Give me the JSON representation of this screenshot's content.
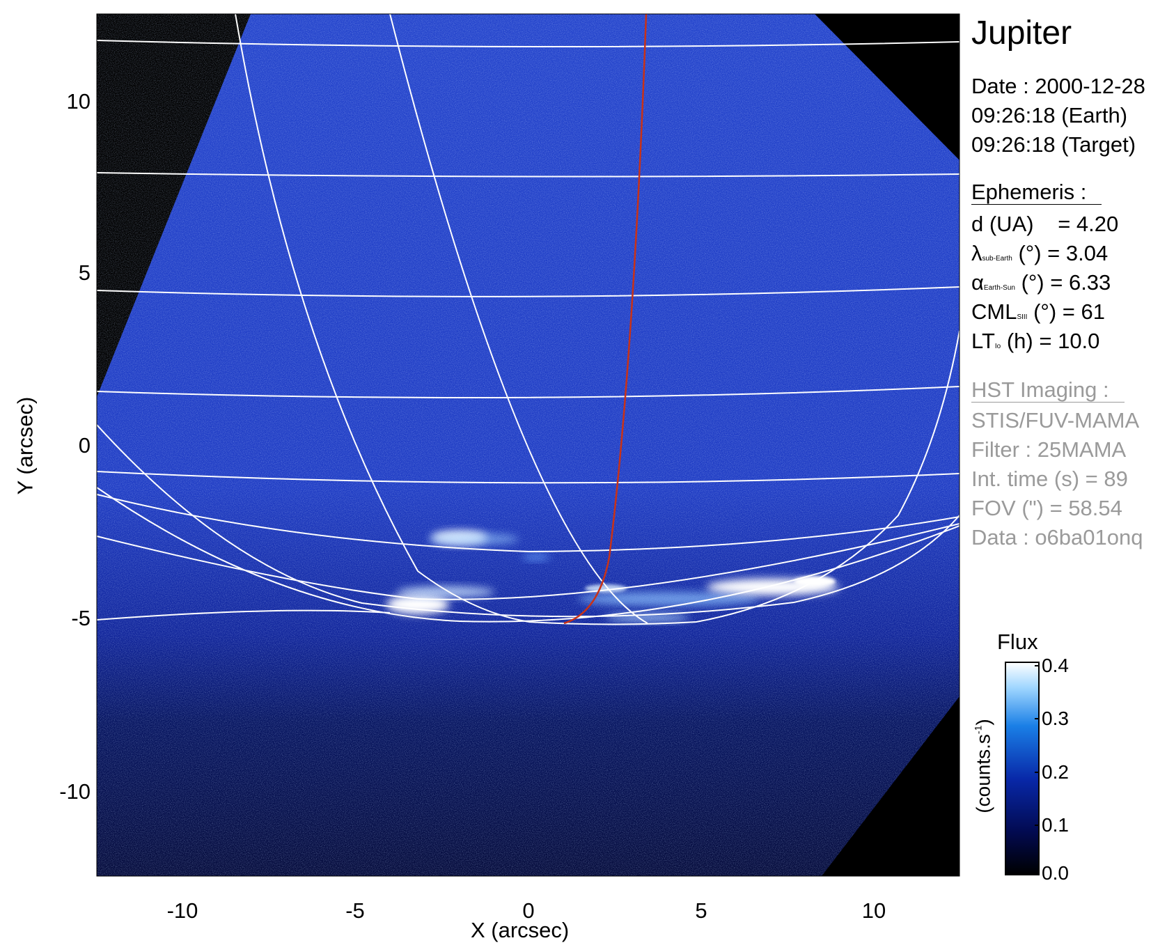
{
  "panel": {
    "title": "Jupiter",
    "date_line": "Date : 2000-12-28",
    "time_earth": "09:26:18 (Earth)",
    "time_target": "09:26:18 (Target)",
    "ephemeris_header": "Ephemeris :",
    "eph": {
      "d_label": "d (UA)",
      "d_value": "= 4.20",
      "lambda_sym": "λ",
      "lambda_sub": "sub-Earth",
      "lambda_value": "(°) = 3.04",
      "alpha_sym": "α",
      "alpha_sub": "Earth-Sun",
      "alpha_value": "(°) = 6.33",
      "cml_sym": "CML",
      "cml_sub": "SIII",
      "cml_value": "(°) = 61",
      "lt_sym": "LT",
      "lt_sub": "Io",
      "lt_value": "(h) = 10.0"
    },
    "hst_header": "HST Imaging :",
    "instrument": "STIS/FUV-MAMA",
    "filter": "Filter : 25MAMA",
    "int_time": "Int. time (s) = 89",
    "fov": "FOV (\") = 58.54",
    "data_id": "Data : o6ba01onq"
  },
  "axes": {
    "xlabel": "X (arcsec)",
    "ylabel": "Y (arcsec)",
    "xticks": [
      "-10",
      "-5",
      "0",
      "5",
      "10"
    ],
    "yticks": [
      "10",
      "5",
      "0",
      "-5",
      "-10"
    ],
    "x_range": [
      -12.5,
      12.5
    ],
    "y_range": [
      -12.5,
      12.5
    ]
  },
  "colorbar": {
    "title": "Flux",
    "unit_label": "(counts.s",
    "unit_sup": "-1",
    "unit_close": ")",
    "ticks": [
      "0.4",
      "0.3",
      "0.2",
      "0.1",
      "0.0"
    ]
  },
  "colors": {
    "background": "#000000",
    "disk_blue": "#1e3cc8",
    "aurora": "#ffffff",
    "grid": "#ffffff",
    "io_footprint": "#c83218"
  }
}
